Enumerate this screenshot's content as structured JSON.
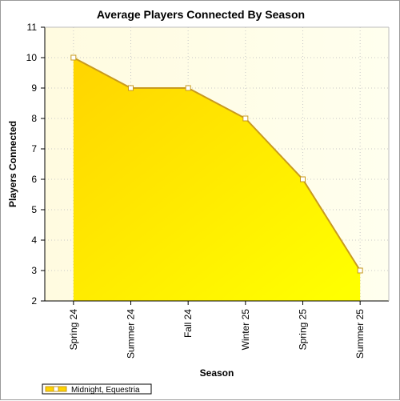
{
  "chart_data": {
    "type": "area",
    "title": "Average Players Connected By Season",
    "xlabel": "Season",
    "ylabel": "Players Connected",
    "categories": [
      "Spring 24",
      "Summer 24",
      "Fall 24",
      "Winter 25",
      "Spring 25",
      "Summer 25"
    ],
    "series": [
      {
        "name": "Midnight, Equestria",
        "values": [
          10,
          9,
          9,
          8,
          6,
          3
        ]
      }
    ],
    "ylim": [
      2,
      11
    ],
    "yticks": [
      "2",
      "3",
      "4",
      "5",
      "6",
      "7",
      "8",
      "9",
      "10",
      "11"
    ],
    "grid": true,
    "legend_position": "bottom-left",
    "colors": {
      "fill_top": "#ffd400",
      "fill_bottom": "#ffff00",
      "line": "#c89a1e",
      "plot_bg": "#fffff0",
      "grid": "#c8c8c8",
      "marker_fill": "#ffffff"
    }
  }
}
